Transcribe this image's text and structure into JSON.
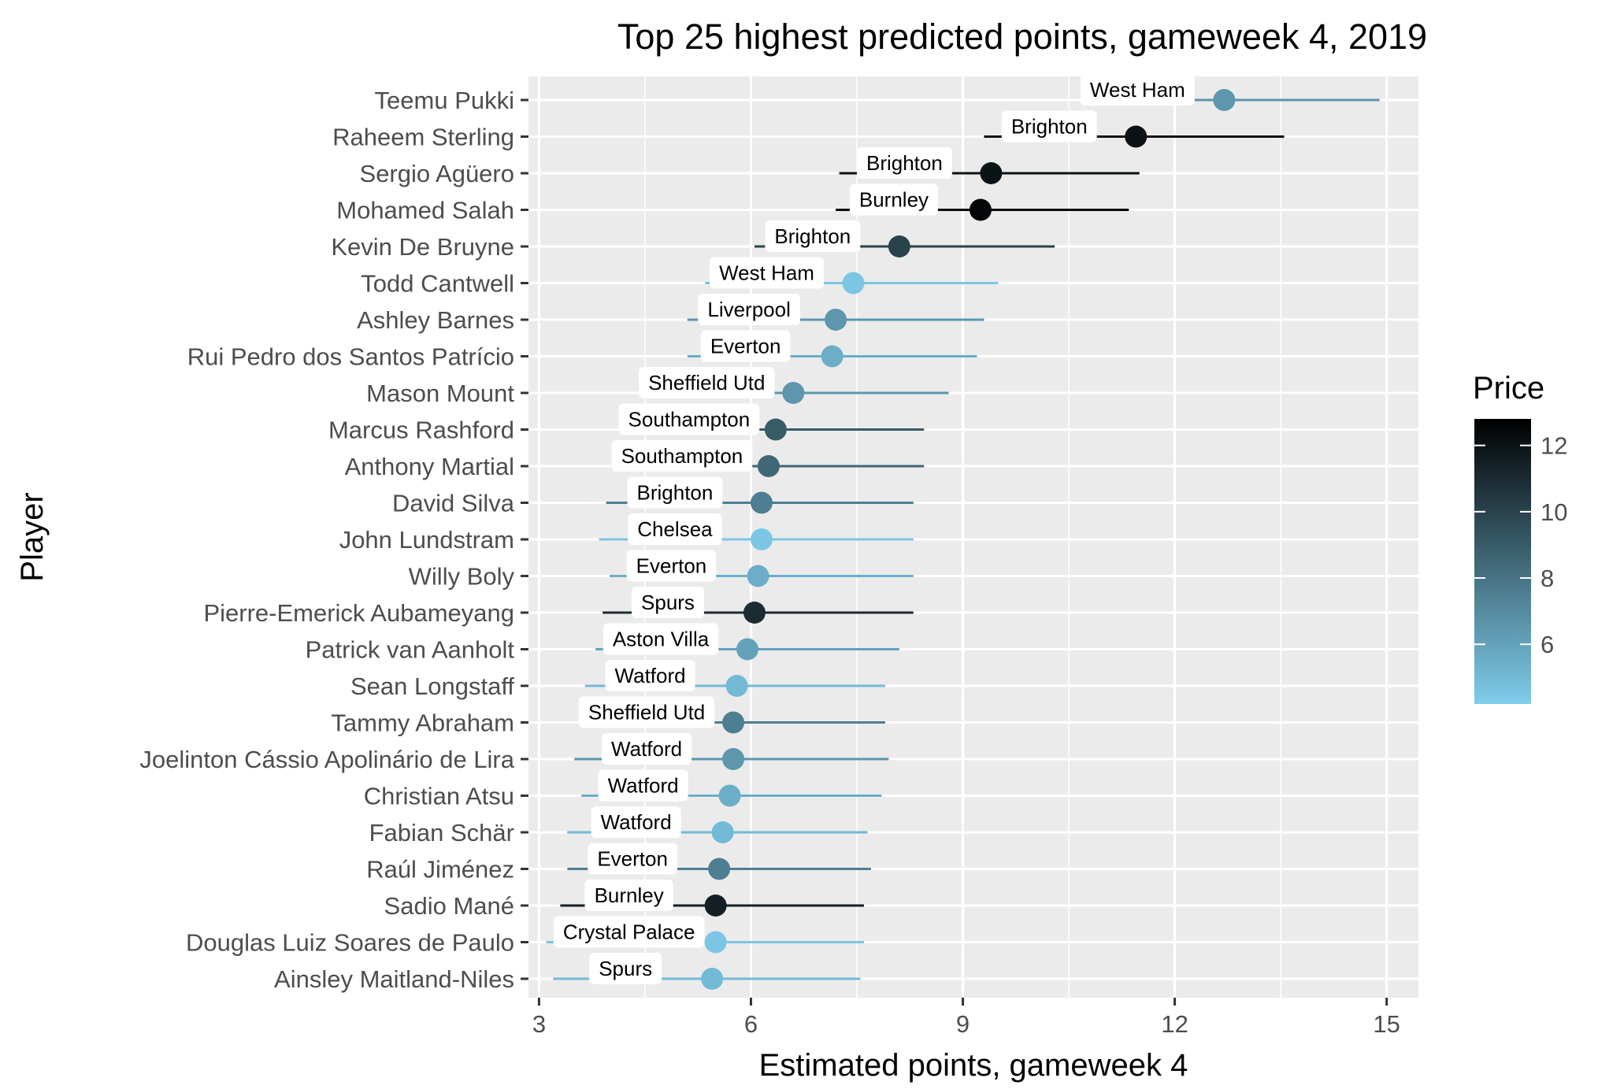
{
  "chart_data": {
    "type": "scatter",
    "title": "Top 25 highest predicted points, gameweek 4, 2019",
    "xlabel": "Estimated points, gameweek 4",
    "ylabel": "Player",
    "xlim": [
      2.85,
      15.45
    ],
    "xticks": [
      3,
      6,
      9,
      12,
      15
    ],
    "grid": true,
    "legend": {
      "title": "Price",
      "position": "right",
      "ticks": [
        6,
        8,
        10,
        12
      ],
      "range": [
        4.2,
        12.8
      ],
      "colors": {
        "low": "#7fcdec",
        "high": "#000000"
      }
    },
    "points": [
      {
        "player": "Teemu Pukki",
        "opponent": "West Ham",
        "estimate": 12.7,
        "low": 10.9,
        "high": 14.9,
        "price": 6.5
      },
      {
        "player": "Raheem Sterling",
        "opponent": "Brighton",
        "estimate": 11.45,
        "low": 9.3,
        "high": 13.55,
        "price": 12.0
      },
      {
        "player": "Sergio Agüero",
        "opponent": "Brighton",
        "estimate": 9.4,
        "low": 7.25,
        "high": 11.5,
        "price": 12.0
      },
      {
        "player": "Mohamed Salah",
        "opponent": "Burnley",
        "estimate": 9.25,
        "low": 7.2,
        "high": 11.35,
        "price": 12.5
      },
      {
        "player": "Kevin De Bruyne",
        "opponent": "Brighton",
        "estimate": 8.1,
        "low": 6.05,
        "high": 10.3,
        "price": 10.0
      },
      {
        "player": "Todd Cantwell",
        "opponent": "West Ham",
        "estimate": 7.45,
        "low": 5.35,
        "high": 9.5,
        "price": 4.5
      },
      {
        "player": "Ashley Barnes",
        "opponent": "Liverpool",
        "estimate": 7.2,
        "low": 5.1,
        "high": 9.3,
        "price": 6.5
      },
      {
        "player": "Rui Pedro dos Santos Patrício",
        "opponent": "Everton",
        "estimate": 7.15,
        "low": 5.1,
        "high": 9.2,
        "price": 5.5
      },
      {
        "player": "Mason Mount",
        "opponent": "Sheffield Utd",
        "estimate": 6.6,
        "low": 4.5,
        "high": 8.8,
        "price": 6.5
      },
      {
        "player": "Marcus Rashford",
        "opponent": "Southampton",
        "estimate": 6.35,
        "low": 4.3,
        "high": 8.45,
        "price": 9.0
      },
      {
        "player": "Anthony Martial",
        "opponent": "Southampton",
        "estimate": 6.25,
        "low": 4.2,
        "high": 8.45,
        "price": 8.5
      },
      {
        "player": "David Silva",
        "opponent": "Brighton",
        "estimate": 6.15,
        "low": 3.95,
        "high": 8.3,
        "price": 7.5
      },
      {
        "player": "John Lundstram",
        "opponent": "Chelsea",
        "estimate": 6.15,
        "low": 3.85,
        "high": 8.3,
        "price": 4.5
      },
      {
        "player": "Willy Boly",
        "opponent": "Everton",
        "estimate": 6.1,
        "low": 4.0,
        "high": 8.3,
        "price": 5.5
      },
      {
        "player": "Pierre-Emerick Aubameyang",
        "opponent": "Spurs",
        "estimate": 6.05,
        "low": 3.9,
        "high": 8.3,
        "price": 11.0
      },
      {
        "player": "Patrick van Aanholt",
        "opponent": "Aston Villa",
        "estimate": 5.95,
        "low": 3.8,
        "high": 8.1,
        "price": 6.0
      },
      {
        "player": "Sean Longstaff",
        "opponent": "Watford",
        "estimate": 5.8,
        "low": 3.65,
        "high": 7.9,
        "price": 5.0
      },
      {
        "player": "Tammy Abraham",
        "opponent": "Sheffield Utd",
        "estimate": 5.75,
        "low": 3.65,
        "high": 7.9,
        "price": 7.5
      },
      {
        "player": "Joelinton Cássio Apolinário de Lira",
        "opponent": "Watford",
        "estimate": 5.75,
        "low": 3.5,
        "high": 7.95,
        "price": 6.5
      },
      {
        "player": "Christian Atsu",
        "opponent": "Watford",
        "estimate": 5.7,
        "low": 3.6,
        "high": 7.85,
        "price": 5.5
      },
      {
        "player": "Fabian Schär",
        "opponent": "Watford",
        "estimate": 5.6,
        "low": 3.4,
        "high": 7.65,
        "price": 5.0
      },
      {
        "player": "Raúl Jiménez",
        "opponent": "Everton",
        "estimate": 5.55,
        "low": 3.4,
        "high": 7.7,
        "price": 7.5
      },
      {
        "player": "Sadio Mané",
        "opponent": "Burnley",
        "estimate": 5.5,
        "low": 3.3,
        "high": 7.6,
        "price": 11.5
      },
      {
        "player": "Douglas Luiz Soares de Paulo",
        "opponent": "Crystal Palace",
        "estimate": 5.5,
        "low": 3.1,
        "high": 7.6,
        "price": 4.5
      },
      {
        "player": "Ainsley Maitland-Niles",
        "opponent": "Spurs",
        "estimate": 5.45,
        "low": 3.2,
        "high": 7.55,
        "price": 5.0
      }
    ]
  }
}
